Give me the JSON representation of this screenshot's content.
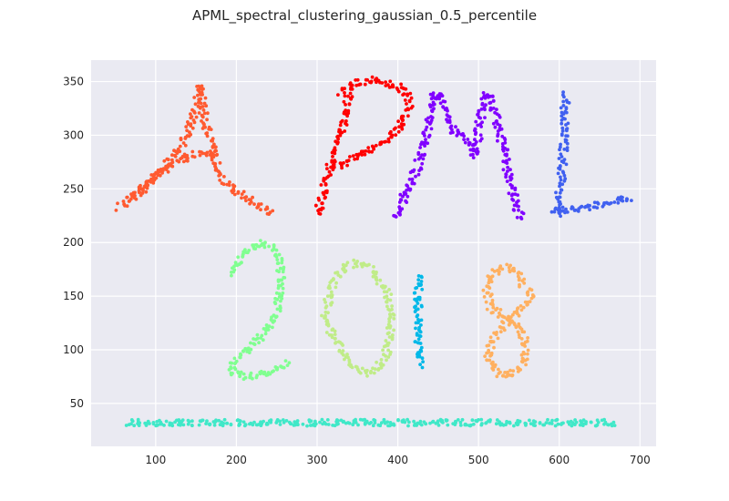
{
  "chart_data": {
    "type": "scatter",
    "title": "APML_spectral_clustering_gaussian_0.5_percentile",
    "xlabel": "",
    "ylabel": "",
    "xlim": [
      20,
      720
    ],
    "ylim": [
      10,
      370
    ],
    "xticks": [
      100,
      200,
      300,
      400,
      500,
      600,
      700
    ],
    "yticks": [
      50,
      100,
      150,
      200,
      250,
      300,
      350
    ],
    "grid": true,
    "legend": "none",
    "series": [
      {
        "name": "A",
        "color": "#ff5a30",
        "strokes": [
          [
            [
              55,
              232
            ],
            [
              85,
              252
            ],
            [
              110,
              268
            ],
            [
              140,
              280
            ],
            [
              160,
              284
            ],
            [
              175,
              282
            ]
          ],
          [
            [
              70,
              240
            ],
            [
              100,
              262
            ],
            [
              125,
              282
            ],
            [
              140,
              300
            ],
            [
              150,
              325
            ],
            [
              155,
              346
            ]
          ],
          [
            [
              155,
              346
            ],
            [
              160,
              320
            ],
            [
              165,
              300
            ],
            [
              175,
              275
            ],
            [
              185,
              258
            ],
            [
              200,
              248
            ],
            [
              220,
              238
            ],
            [
              245,
              228
            ]
          ]
        ]
      },
      {
        "name": "P",
        "color": "#ff0000",
        "strokes": [
          [
            [
              300,
              225
            ],
            [
              305,
              240
            ],
            [
              310,
              258
            ],
            [
              318,
              275
            ],
            [
              325,
              290
            ],
            [
              332,
              308
            ],
            [
              337,
              325
            ],
            [
              340,
              340
            ]
          ],
          [
            [
              330,
              340
            ],
            [
              345,
              348
            ],
            [
              360,
              350
            ],
            [
              375,
              352
            ],
            [
              385,
              348
            ],
            [
              400,
              345
            ],
            [
              410,
              340
            ],
            [
              415,
              330
            ],
            [
              410,
              318
            ],
            [
              400,
              305
            ],
            [
              390,
              298
            ],
            [
              375,
              290
            ],
            [
              360,
              285
            ],
            [
              345,
              278
            ],
            [
              330,
              272
            ],
            [
              318,
              268
            ]
          ]
        ]
      },
      {
        "name": "M",
        "color": "#8000ff",
        "strokes": [
          [
            [
              395,
              222
            ],
            [
              405,
              238
            ],
            [
              415,
              255
            ],
            [
              425,
              272
            ],
            [
              432,
              290
            ],
            [
              438,
              310
            ],
            [
              442,
              325
            ],
            [
              445,
              340
            ],
            [
              450,
              338
            ],
            [
              460,
              320
            ],
            [
              470,
              305
            ],
            [
              480,
              300
            ],
            [
              490,
              288
            ],
            [
              495,
              280
            ],
            [
              498,
              292
            ],
            [
              500,
              305
            ],
            [
              505,
              325
            ],
            [
              510,
              340
            ],
            [
              515,
              335
            ],
            [
              520,
              320
            ],
            [
              525,
              305
            ],
            [
              530,
              290
            ],
            [
              535,
              272
            ],
            [
              540,
              255
            ],
            [
              545,
              240
            ],
            [
              550,
              228
            ],
            [
              555,
              222
            ]
          ]
        ]
      },
      {
        "name": "L",
        "color": "#4060f0",
        "strokes": [
          [
            [
              608,
              338
            ],
            [
              607,
              320
            ],
            [
              606,
              300
            ],
            [
              605,
              280
            ],
            [
              603,
              262
            ],
            [
              601,
              248
            ],
            [
              600,
              235
            ],
            [
              600,
              225
            ]
          ],
          [
            [
              590,
              230
            ],
            [
              610,
              230
            ],
            [
              630,
              232
            ],
            [
              650,
              236
            ],
            [
              670,
              240
            ],
            [
              690,
              242
            ]
          ]
        ]
      },
      {
        "name": "2",
        "color": "#80ff90",
        "strokes": [
          [
            [
              195,
              170
            ],
            [
              205,
              185
            ],
            [
              220,
              196
            ],
            [
              235,
              200
            ],
            [
              248,
              195
            ],
            [
              255,
              180
            ],
            [
              255,
              160
            ],
            [
              252,
              140
            ],
            [
              245,
              125
            ],
            [
              235,
              115
            ],
            [
              220,
              105
            ],
            [
              205,
              95
            ],
            [
              195,
              85
            ],
            [
              195,
              78
            ],
            [
              210,
              75
            ],
            [
              225,
              76
            ],
            [
              240,
              80
            ],
            [
              255,
              84
            ],
            [
              265,
              88
            ]
          ]
        ]
      },
      {
        "name": "0",
        "color": "#c0ec88",
        "strokes": [
          [
            [
              310,
              130
            ],
            [
              315,
              150
            ],
            [
              322,
              165
            ],
            [
              335,
              178
            ],
            [
              350,
              181
            ],
            [
              365,
              176
            ],
            [
              378,
              165
            ],
            [
              388,
              150
            ],
            [
              392,
              130
            ],
            [
              390,
              110
            ],
            [
              385,
              95
            ],
            [
              375,
              82
            ],
            [
              362,
              78
            ],
            [
              348,
              82
            ],
            [
              335,
              95
            ],
            [
              322,
              110
            ],
            [
              315,
              120
            ],
            [
              310,
              130
            ]
          ]
        ]
      },
      {
        "name": "1",
        "color": "#00b8e8",
        "strokes": [
          [
            [
              425,
              170
            ],
            [
              425,
              150
            ],
            [
              426,
              130
            ],
            [
              426,
              110
            ],
            [
              427,
              90
            ],
            [
              427,
              85
            ]
          ]
        ]
      },
      {
        "name": "8",
        "color": "#ffb060",
        "strokes": [
          [
            [
              555,
              160
            ],
            [
              545,
              173
            ],
            [
              530,
              177
            ],
            [
              515,
              170
            ],
            [
              510,
              155
            ],
            [
              515,
              140
            ],
            [
              530,
              132
            ],
            [
              545,
              125
            ],
            [
              555,
              115
            ],
            [
              560,
              100
            ],
            [
              555,
              85
            ],
            [
              545,
              78
            ],
            [
              530,
              76
            ],
            [
              518,
              80
            ],
            [
              512,
              92
            ],
            [
              515,
              105
            ],
            [
              525,
              118
            ],
            [
              540,
              130
            ],
            [
              555,
              140
            ],
            [
              565,
              150
            ],
            [
              560,
              158
            ]
          ]
        ]
      },
      {
        "name": "baseline",
        "color": "#40e8c8",
        "strokes": [
          [
            [
              65,
              32
            ],
            [
              670,
              32
            ]
          ]
        ]
      }
    ]
  }
}
